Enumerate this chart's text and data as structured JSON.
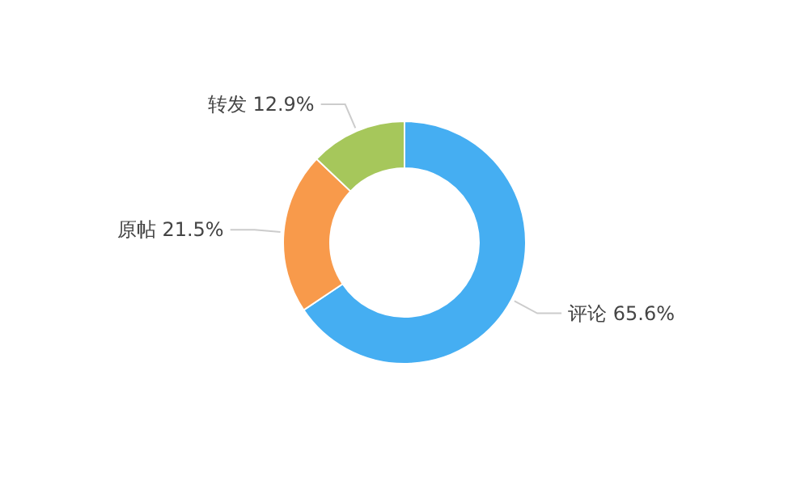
{
  "chart_data": {
    "type": "donut",
    "categories": [
      "评论",
      "原帖",
      "转发"
    ],
    "values": [
      65.6,
      21.5,
      12.9
    ],
    "colors": [
      "#45aef2",
      "#f89a4b",
      "#a6c75b"
    ],
    "value_labels": [
      "65.6%",
      "21.5%",
      "12.9%"
    ]
  }
}
